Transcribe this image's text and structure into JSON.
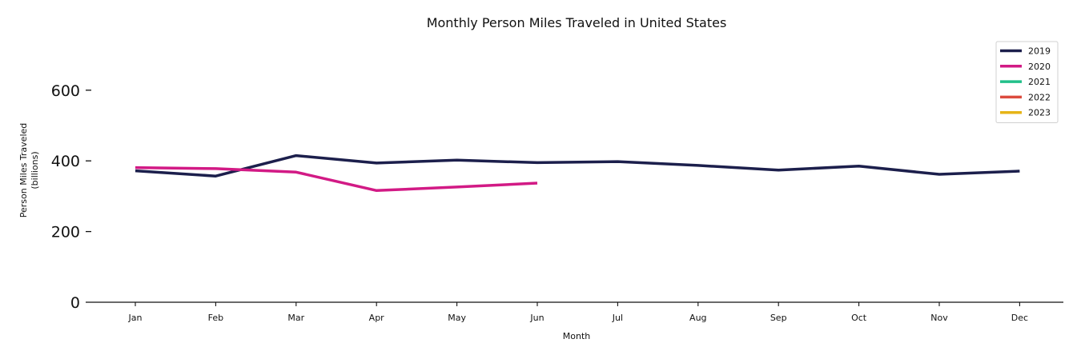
{
  "chart_data": {
    "type": "line",
    "title": "Monthly Person Miles Traveled in United States",
    "xlabel": "Month",
    "ylabel_lines": [
      "Person Miles Traveled",
      "(billions)"
    ],
    "categories": [
      "Jan",
      "Feb",
      "Mar",
      "Apr",
      "May",
      "Jun",
      "Jul",
      "Aug",
      "Sep",
      "Oct",
      "Nov",
      "Dec"
    ],
    "ylim": [
      0,
      750
    ],
    "yticks": [
      0,
      200,
      400,
      600
    ],
    "grid": false,
    "legend_position": "top-right",
    "series": [
      {
        "name": "2019",
        "color": "#1c1f4c",
        "values": [
          372,
          357,
          415,
          394,
          402,
          395,
          398,
          387,
          374,
          385,
          362,
          371
        ]
      },
      {
        "name": "2020",
        "color": "#d21a85",
        "values": [
          381,
          378,
          368,
          316,
          326,
          337,
          null,
          null,
          null,
          null,
          null,
          null
        ]
      },
      {
        "name": "2021",
        "color": "#22c08a",
        "values": [
          null,
          null,
          null,
          null,
          null,
          null,
          null,
          null,
          null,
          null,
          null,
          null
        ]
      },
      {
        "name": "2022",
        "color": "#dc4b3e",
        "values": [
          null,
          null,
          null,
          null,
          null,
          null,
          null,
          null,
          null,
          null,
          null,
          null
        ]
      },
      {
        "name": "2023",
        "color": "#e6b417",
        "values": [
          null,
          null,
          null,
          null,
          null,
          null,
          null,
          null,
          null,
          null,
          null,
          null
        ]
      }
    ]
  }
}
